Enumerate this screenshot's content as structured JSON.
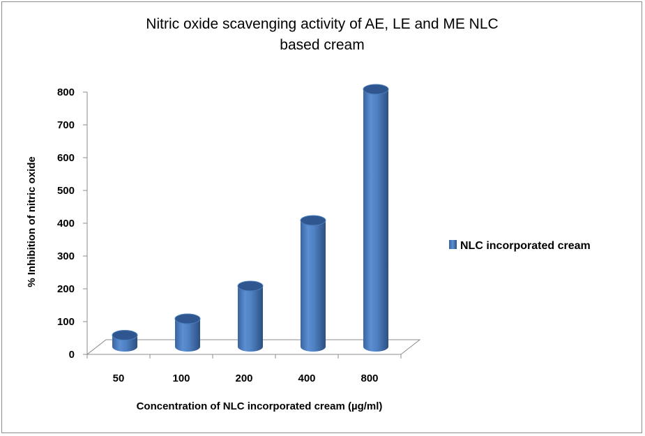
{
  "chart_data": {
    "type": "bar",
    "title": "Nitric oxide scavenging activity of AE, LE and ME NLC",
    "title_line2": "based cream",
    "xlabel": "Concentration of NLC incorporated cream (µg/ml)",
    "ylabel": "% Inhibition of nitric oxide",
    "categories": [
      "50",
      "100",
      "200",
      "400",
      "800"
    ],
    "series": [
      {
        "name": "NLC incorporated cream",
        "values": [
          50,
          100,
          200,
          400,
          800
        ],
        "color": "#4a7ebb"
      }
    ],
    "ylim": [
      0,
      800
    ],
    "yticks": [
      "0",
      "100",
      "200",
      "300",
      "400",
      "500",
      "600",
      "700",
      "800"
    ],
    "grid": false,
    "legend": "right",
    "style": "3d-cylinder"
  }
}
